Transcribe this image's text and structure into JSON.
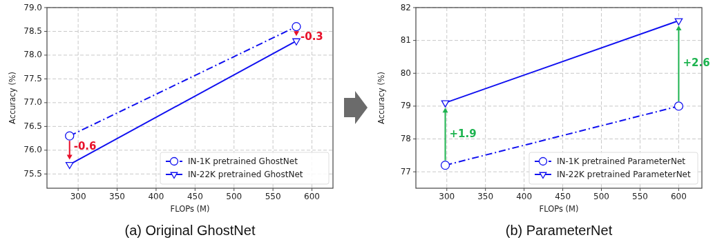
{
  "chart_data": [
    {
      "type": "line",
      "title": "(a) Original GhostNet",
      "xlabel": "FLOPs (M)",
      "ylabel": "Accuracy (%)",
      "x": [
        289,
        580
      ],
      "xlim": [
        260,
        627
      ],
      "xticks": [
        300,
        350,
        400,
        450,
        500,
        550,
        600
      ],
      "ylim": [
        75.2,
        79.0
      ],
      "yticks": [
        {
          "value": 75.5,
          "label": "75.5"
        },
        {
          "value": 76,
          "label": "76.0"
        },
        {
          "value": 76.5,
          "label": "76.5"
        },
        {
          "value": 77,
          "label": "77.0"
        },
        {
          "value": 77.5,
          "label": "77.5"
        },
        {
          "value": 78,
          "label": "78.0"
        },
        {
          "value": 78.5,
          "label": "78.5"
        },
        {
          "value": 79,
          "label": "79.0"
        }
      ],
      "grid": true,
      "legend": "bottom right",
      "series": [
        {
          "name": "IN-1K pretrained GhostNet",
          "color": "#1010f0",
          "values": [
            76.3,
            78.6
          ],
          "marker": "circle",
          "line_style": "dashdot"
        },
        {
          "name": "IN-22K pretrained GhostNet",
          "color": "#1010f0",
          "values": [
            75.7,
            78.3
          ],
          "marker": "triangle-down",
          "line_style": "solid"
        }
      ],
      "annotations": [
        "-0.6",
        "-0.3"
      ]
    },
    {
      "type": "line",
      "title": "(b) ParameterNet",
      "xlabel": "FLOPs (M)",
      "ylabel": "Accuracy (%)",
      "x": [
        298,
        600
      ],
      "xlim": [
        260,
        630
      ],
      "xticks": [
        300,
        350,
        400,
        450,
        500,
        550,
        600
      ],
      "ylim": [
        76.5,
        82
      ],
      "yticks": [
        77,
        78,
        79,
        80,
        81,
        82
      ],
      "grid": true,
      "legend": "bottom right",
      "series": [
        {
          "name": "IN-1K pretrained ParameterNet",
          "color": "#1010f0",
          "values": [
            77.2,
            79.0
          ],
          "marker": "circle",
          "line_style": "dashdot"
        },
        {
          "name": "IN-22K pretrained ParameterNet",
          "color": "#1010f0",
          "values": [
            79.1,
            81.6
          ],
          "marker": "triangle-down",
          "line_style": "solid"
        }
      ],
      "annotations": [
        "+1.9",
        "+2.6"
      ]
    }
  ]
}
